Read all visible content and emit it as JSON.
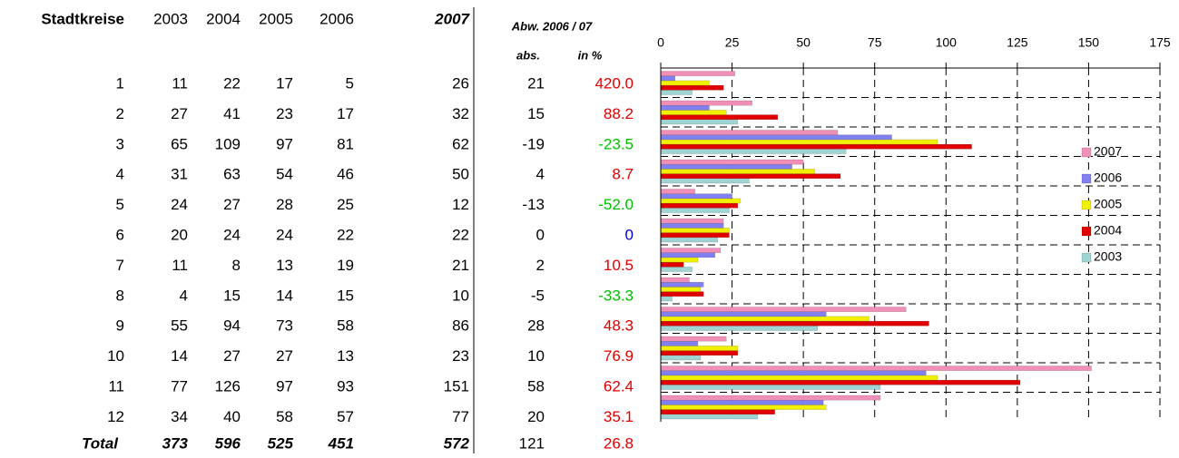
{
  "table": {
    "header": "Stadtkreise",
    "deviation_header": "Abw. 2006 / 07",
    "abs_header": "abs.",
    "pct_header": "in %",
    "abs": [
      21,
      15,
      -19,
      4,
      -13,
      0,
      2,
      -5,
      28,
      10,
      58,
      20
    ],
    "pct": [
      "420.0",
      "88.2",
      "-23.5",
      "8.7",
      "-52.0",
      "0",
      "10.5",
      "-33.3",
      "48.3",
      "76.9",
      "62.4",
      "35.1"
    ],
    "total_label": "Total",
    "totals": [
      373,
      596,
      525,
      451,
      572
    ],
    "total_abs": 121,
    "total_pct": "26.8"
  },
  "chart_data": {
    "type": "bar",
    "orientation": "horizontal",
    "categories": [
      "1",
      "2",
      "3",
      "4",
      "5",
      "6",
      "7",
      "8",
      "9",
      "10",
      "11",
      "12"
    ],
    "series": [
      {
        "name": "2003",
        "color": "#9fd4d4",
        "values": [
          11,
          27,
          65,
          31,
          24,
          20,
          11,
          4,
          55,
          14,
          77,
          34
        ]
      },
      {
        "name": "2004",
        "color": "#e00000",
        "values": [
          22,
          41,
          109,
          63,
          27,
          24,
          8,
          15,
          94,
          27,
          126,
          40
        ]
      },
      {
        "name": "2005",
        "color": "#f0f000",
        "values": [
          17,
          23,
          97,
          54,
          28,
          24,
          13,
          14,
          73,
          27,
          97,
          58
        ]
      },
      {
        "name": "2006",
        "color": "#8080f0",
        "values": [
          5,
          17,
          81,
          46,
          25,
          22,
          19,
          15,
          58,
          13,
          93,
          57
        ]
      },
      {
        "name": "2007",
        "color": "#f090b8",
        "values": [
          26,
          32,
          62,
          50,
          12,
          22,
          21,
          10,
          86,
          23,
          151,
          77
        ]
      }
    ],
    "xlim": [
      0,
      175
    ],
    "xticks": [
      0,
      25,
      50,
      75,
      100,
      125,
      150,
      175
    ],
    "grid": true,
    "legend": "right"
  }
}
